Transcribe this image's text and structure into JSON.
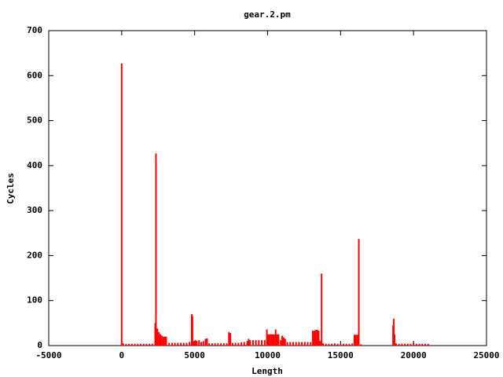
{
  "chart_data": {
    "type": "impulse",
    "title": "gear.2.pm",
    "x_label": "Length",
    "y_label": "Cycles",
    "color": "#ff0000",
    "xlim": [
      -5000,
      25000
    ],
    "xticks": [
      -5000,
      0,
      5000,
      10000,
      15000,
      20000,
      25000
    ],
    "ylim": [
      0,
      700
    ],
    "yticks": [
      0,
      100,
      200,
      300,
      400,
      500,
      600,
      700
    ],
    "x": [
      0,
      100,
      300,
      500,
      700,
      900,
      1100,
      1300,
      1500,
      1700,
      1900,
      2100,
      2300,
      2350,
      2450,
      2550,
      2650,
      2750,
      2850,
      2950,
      3050,
      3250,
      3450,
      3650,
      3850,
      4050,
      4250,
      4450,
      4650,
      4800,
      4850,
      4950,
      5050,
      5150,
      5300,
      5450,
      5600,
      5750,
      5850,
      6000,
      6200,
      6400,
      6600,
      6800,
      7000,
      7200,
      7350,
      7450,
      7600,
      7800,
      8000,
      8200,
      8400,
      8600,
      8700,
      8800,
      9000,
      9200,
      9400,
      9600,
      9800,
      9950,
      10050,
      10150,
      10250,
      10350,
      10450,
      10550,
      10650,
      10750,
      10900,
      11000,
      11100,
      11200,
      11350,
      11550,
      11750,
      11950,
      12150,
      12350,
      12550,
      12750,
      12950,
      13100,
      13200,
      13300,
      13400,
      13500,
      13600,
      13700,
      13800,
      14000,
      14200,
      14400,
      14600,
      14800,
      15000,
      15200,
      15400,
      15600,
      15800,
      15950,
      16050,
      16150,
      16250,
      16400,
      18600,
      18650,
      18700,
      18800,
      19000,
      19200,
      19400,
      19600,
      19800,
      20000,
      20200,
      20400,
      20600,
      20800,
      21000
    ],
    "values": [
      627,
      5,
      4,
      4,
      4,
      4,
      4,
      4,
      4,
      4,
      4,
      4,
      50,
      427,
      38,
      30,
      25,
      22,
      20,
      20,
      20,
      6,
      6,
      6,
      6,
      6,
      6,
      6,
      8,
      70,
      65,
      10,
      12,
      10,
      12,
      8,
      10,
      15,
      16,
      5,
      5,
      5,
      5,
      5,
      5,
      5,
      30,
      28,
      6,
      6,
      6,
      7,
      8,
      10,
      15,
      12,
      12,
      12,
      12,
      12,
      12,
      36,
      25,
      25,
      25,
      25,
      25,
      36,
      25,
      25,
      12,
      22,
      18,
      15,
      8,
      8,
      8,
      8,
      8,
      8,
      8,
      8,
      8,
      33,
      33,
      35,
      35,
      33,
      10,
      160,
      5,
      4,
      4,
      4,
      5,
      4,
      4,
      4,
      4,
      4,
      5,
      24,
      24,
      24,
      237,
      3,
      45,
      60,
      25,
      5,
      4,
      4,
      4,
      4,
      4,
      6,
      4,
      4,
      4,
      4,
      4
    ]
  }
}
